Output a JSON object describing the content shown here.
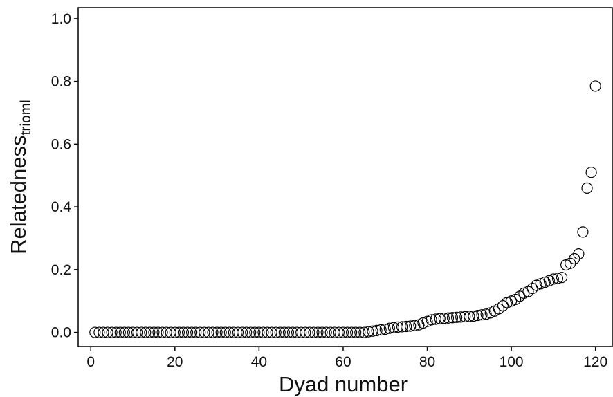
{
  "chart_data": {
    "type": "scatter",
    "title": "",
    "xlabel": "Dyad number",
    "ylabel": "Relatedness",
    "ylabel_subscript": "trioml",
    "xlim": [
      -3,
      124
    ],
    "ylim": [
      -0.045,
      1.035
    ],
    "xticks": [
      0,
      20,
      40,
      60,
      80,
      100,
      120
    ],
    "xtick_labels": [
      "0",
      "20",
      "40",
      "60",
      "80",
      "100",
      "120"
    ],
    "yticks": [
      0.0,
      0.2,
      0.4,
      0.6,
      0.8,
      1.0
    ],
    "ytick_labels": [
      "0.0",
      "0.2",
      "0.4",
      "0.6",
      "0.8",
      "1.0"
    ],
    "grid": false,
    "legend": "none",
    "marker": "open-circle",
    "series": [
      {
        "x": [
          1,
          2,
          3,
          4,
          5,
          6,
          7,
          8,
          9,
          10,
          11,
          12,
          13,
          14,
          15,
          16,
          17,
          18,
          19,
          20,
          21,
          22,
          23,
          24,
          25,
          26,
          27,
          28,
          29,
          30,
          31,
          32,
          33,
          34,
          35,
          36,
          37,
          38,
          39,
          40,
          41,
          42,
          43,
          44,
          45,
          46,
          47,
          48,
          49,
          50,
          51,
          52,
          53,
          54,
          55,
          56,
          57,
          58,
          59,
          60,
          61,
          62,
          63,
          64,
          65,
          66,
          67,
          68,
          69,
          70,
          71,
          72,
          73,
          74,
          75,
          76,
          77,
          78,
          79,
          80,
          81,
          82,
          83,
          84,
          85,
          86,
          87,
          88,
          89,
          90,
          91,
          92,
          93,
          94,
          95,
          96,
          97,
          98,
          99,
          100,
          101,
          102,
          103,
          104,
          105,
          106,
          107,
          108,
          109,
          110,
          111,
          112,
          113,
          114,
          115,
          116,
          117,
          118,
          119,
          120
        ],
        "y": [
          0,
          0,
          0,
          0,
          0,
          0,
          0,
          0,
          0,
          0,
          0,
          0,
          0,
          0,
          0,
          0,
          0,
          0,
          0,
          0,
          0,
          0,
          0,
          0,
          0,
          0,
          0,
          0,
          0,
          0,
          0,
          0,
          0,
          0,
          0,
          0,
          0,
          0,
          0,
          0,
          0,
          0,
          0,
          0,
          0,
          0,
          0,
          0,
          0,
          0,
          0,
          0,
          0,
          0,
          0,
          0,
          0,
          0,
          0,
          0,
          0,
          0,
          0,
          0,
          0,
          0.002,
          0.004,
          0.006,
          0.008,
          0.01,
          0.013,
          0.015,
          0.017,
          0.018,
          0.019,
          0.02,
          0.022,
          0.024,
          0.03,
          0.035,
          0.04,
          0.042,
          0.044,
          0.045,
          0.046,
          0.047,
          0.048,
          0.049,
          0.05,
          0.051,
          0.052,
          0.054,
          0.056,
          0.058,
          0.062,
          0.068,
          0.075,
          0.085,
          0.095,
          0.1,
          0.105,
          0.115,
          0.125,
          0.13,
          0.14,
          0.15,
          0.155,
          0.16,
          0.165,
          0.17,
          0.172,
          0.175,
          0.215,
          0.22,
          0.235,
          0.25,
          0.32,
          0.46,
          0.51,
          0.785
        ]
      }
    ]
  }
}
